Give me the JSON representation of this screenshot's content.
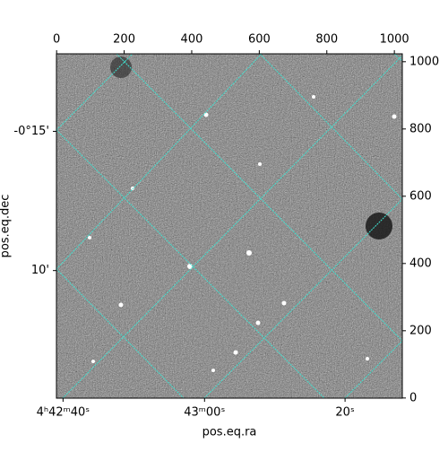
{
  "chart_data": {
    "type": "image",
    "xlabel": "pos.eq.ra",
    "ylabel": "pos.eq.dec",
    "xlim": [
      -0.5,
      1023.5
    ],
    "ylim": [
      -0.5,
      1023.5
    ],
    "xticks": [
      0,
      200,
      400,
      600,
      800,
      1000
    ],
    "yticks": [
      0,
      200,
      400,
      600,
      800,
      1000
    ],
    "ra_ticks": [
      {
        "value": 19,
        "label": "4ʰ42ᵐ40ˢ"
      },
      {
        "value": 438,
        "label": "43ᵐ00ˢ"
      },
      {
        "value": 854,
        "label": "20ˢ"
      }
    ],
    "dec_ticks": [
      {
        "value": 793,
        "label": "-0°15'"
      },
      {
        "value": 379,
        "label": "10'"
      }
    ],
    "grid_color": "#40e0d0"
  }
}
